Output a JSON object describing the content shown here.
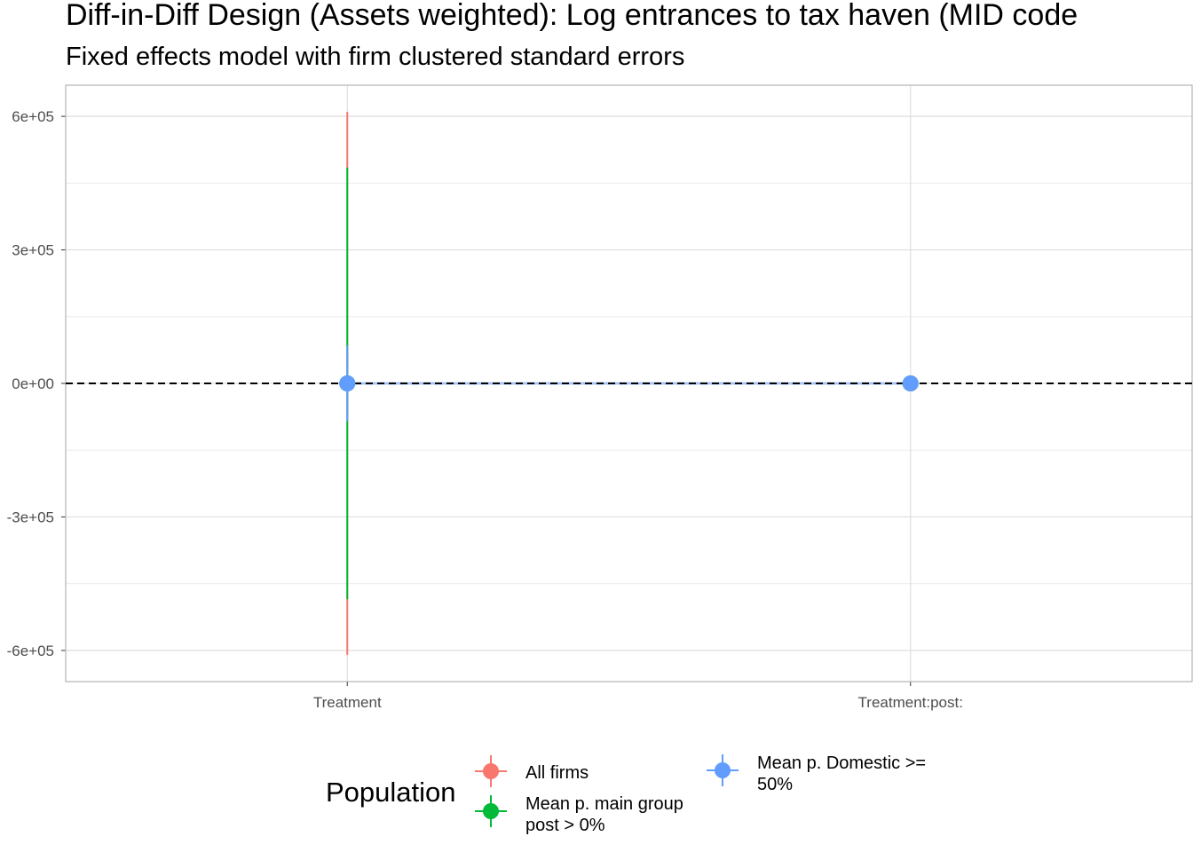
{
  "chart_data": {
    "type": "scatter",
    "title": "Diff-in-Diff Design (Assets weighted): Log entrances to tax haven (MID code",
    "subtitle": "Fixed effects model with firm clustered standard errors",
    "xlabel": "",
    "ylabel": "",
    "categories": [
      "Treatment",
      "Treatment:post:"
    ],
    "ylim": [
      -670000,
      670000
    ],
    "y_ticks": [
      {
        "value": 600000,
        "label": "6e+05"
      },
      {
        "value": 300000,
        "label": "3e+05"
      },
      {
        "value": 0,
        "label": "0e+00"
      },
      {
        "value": -300000,
        "label": "-3e+05"
      },
      {
        "value": -600000,
        "label": "-6e+05"
      }
    ],
    "reference_line": 0,
    "grid": true,
    "legend": {
      "title": "Population",
      "position": "bottom"
    },
    "series": [
      {
        "name": "All firms",
        "color": "#F8766D",
        "points": [
          {
            "x": "Treatment",
            "y": 0,
            "lo": -610000,
            "hi": 610000
          },
          {
            "x": "Treatment:post:",
            "y": 0,
            "lo": 0,
            "hi": 0
          }
        ]
      },
      {
        "name": "Mean p. main group post > 0%",
        "label_lines": [
          "Mean p. main group",
          "post > 0%"
        ],
        "color": "#00BA38",
        "points": [
          {
            "x": "Treatment",
            "y": 0,
            "lo": -485000,
            "hi": 485000
          },
          {
            "x": "Treatment:post:",
            "y": 0,
            "lo": 0,
            "hi": 0
          }
        ]
      },
      {
        "name": "Mean p. Domestic >= 50%",
        "label_lines": [
          "Mean p. Domestic >=",
          "50%"
        ],
        "color": "#619CFF",
        "points": [
          {
            "x": "Treatment",
            "y": 0,
            "lo": -85000,
            "hi": 85000
          },
          {
            "x": "Treatment:post:",
            "y": 0,
            "lo": 0,
            "hi": 0
          }
        ]
      }
    ]
  }
}
